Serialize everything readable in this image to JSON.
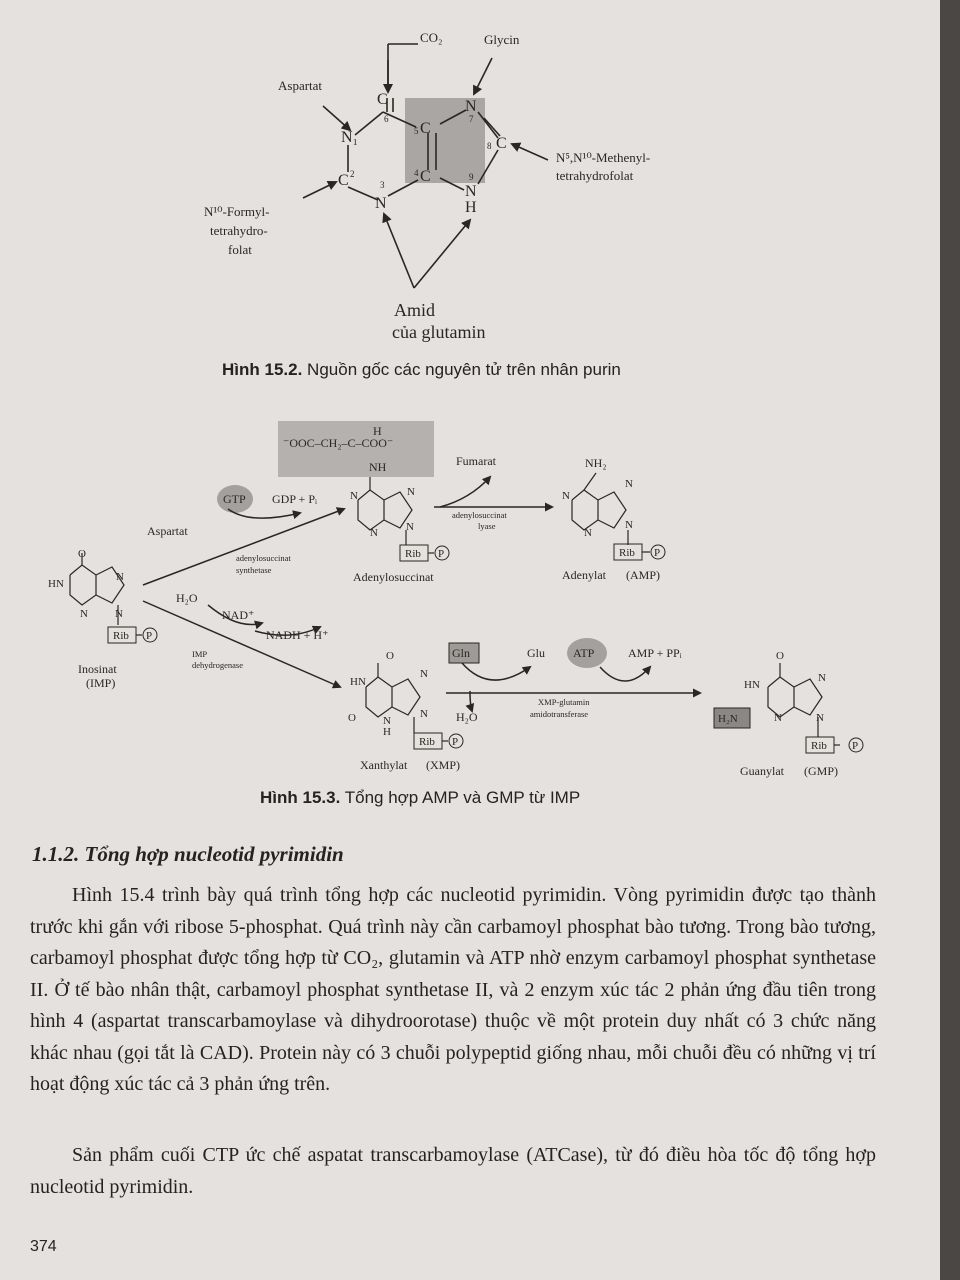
{
  "figure_152": {
    "labels": {
      "co2": "CO₂",
      "glycin": "Glycin",
      "aspartat": "Aspartat",
      "methenyl_line1": "N⁵,N¹⁰-Methenyl-",
      "methenyl_line2": "tetrahydrofolat",
      "formyl_line1": "N¹⁰-Formyl-",
      "formyl_line2": "tetrahydro-",
      "formyl_line3": "folat",
      "amid_line1": "Amid",
      "amid_line2": "của glutamin"
    },
    "ring_atoms": {
      "n1": "N₁",
      "c2": "C",
      "n3": "N",
      "c4": "C",
      "c5": "C",
      "c6": "C",
      "n7": "N",
      "c8": "C",
      "n9": "N",
      "h9": "H",
      "num2": "2",
      "num3": "3",
      "num4": "4",
      "num5": "5",
      "num6": "6",
      "num7": "7",
      "num8": "8",
      "num9": "9"
    },
    "caption_label": "Hình 15.2.",
    "caption_text": "Nguồn gốc các nguyên tử trên nhân purin"
  },
  "figure_153": {
    "imp": {
      "name": "Inosinat",
      "abbr": "(IMP)"
    },
    "adenylosuccinat": {
      "name": "Adenylosuccinat",
      "side_chain": "⁻OOC–CH₂–C–COO⁻",
      "h": "H",
      "nh": "NH"
    },
    "amp": {
      "name": "Adenylat",
      "abbr": "(AMP)",
      "nh2": "NH₂"
    },
    "xmp": {
      "name": "Xanthylat",
      "abbr": "(XMP)"
    },
    "gmp": {
      "name": "Guanylat",
      "abbr": "(GMP)",
      "h2n": "H₂N"
    },
    "reagents": {
      "aspartat": "Aspartat",
      "gtp": "GTP",
      "gdp": "GDP + Pᵢ",
      "fumarat": "Fumarat",
      "h2o_a": "H₂O",
      "nad": "NAD⁺",
      "nadh": "NADH + H⁺",
      "gln": "Gln",
      "glu": "Glu",
      "atp": "ATP",
      "amp_ppi": "AMP + PPᵢ",
      "h2o_b": "H₂O"
    },
    "enzymes": {
      "synthetase_1": "adenylosuccinat",
      "synthetase_2": "synthetase",
      "lyase_1": "adenylosuccinat",
      "lyase_2": "lyase",
      "dehydrogenase_1": "IMP",
      "dehydrogenase_2": "dehydrogenase",
      "amidotransferase_1": "XMP-glutamin",
      "amidotransferase_2": "amidotransferase"
    },
    "atoms": {
      "hn": "HN",
      "n": "N",
      "o": "O",
      "h": "H",
      "rib": "Rib",
      "p": "P"
    },
    "caption_label": "Hình 15.3.",
    "caption_text": "Tổng hợp AMP và GMP từ IMP"
  },
  "section": {
    "title": "1.1.2. Tổng hợp nucleotid pyrimidin",
    "paragraph_1": "Hình 15.4 trình bày quá trình tổng hợp các nucleotid pyrimidin. Vòng pyrimidin được tạo thành trước khi gắn với ribose 5-phosphat. Quá trình này cần carbamoyl phosphat bào tương. Trong bào tương, carbamoyl phosphat được tổng hợp từ CO₂, glutamin và ATP nhờ enzym carbamoyl phosphat synthetase II. Ở tế bào nhân thật, carbamoyl phosphat synthetase II, và 2 enzym xúc tác 2 phản ứng đầu tiên trong hình 4 (aspartat transcarbamoylase và dihydroorotase) thuộc về một protein duy nhất có 3 chức năng khác nhau (gọi tắt là CAD). Protein này có 3 chuỗi polypeptid giống nhau, mỗi chuỗi đều có những vị trí hoạt động xúc tác cả 3 phản ứng trên.",
    "paragraph_2": "Sản phẩm cuối CTP ức chế aspatat transcarbamoylase (ATCase), từ đó điều hòa tốc độ tổng hợp nucleotid pyrimidin."
  },
  "page_number": "374"
}
